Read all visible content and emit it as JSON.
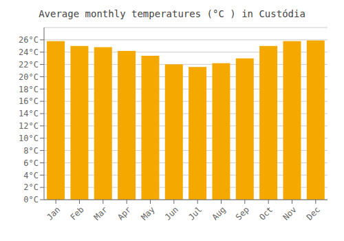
{
  "chart_data": {
    "type": "bar",
    "title": "Average monthly temperatures (°C ) in Custódia",
    "categories": [
      "Jan",
      "Feb",
      "Mar",
      "Apr",
      "May",
      "Jun",
      "Jul",
      "Aug",
      "Sep",
      "Oct",
      "Nov",
      "Dec"
    ],
    "values": [
      25.8,
      25.0,
      24.8,
      24.2,
      23.4,
      22.0,
      21.6,
      22.2,
      23.0,
      25.0,
      25.8,
      25.9
    ],
    "color": "#F5A800",
    "ylim": [
      0,
      28
    ],
    "yticks": [
      {
        "value": 0,
        "label": "0°C"
      },
      {
        "value": 2,
        "label": "2°C"
      },
      {
        "value": 4,
        "label": "4°C"
      },
      {
        "value": 6,
        "label": "6°C"
      },
      {
        "value": 8,
        "label": "8°C"
      },
      {
        "value": 10,
        "label": "10°C"
      },
      {
        "value": 12,
        "label": "12°C"
      },
      {
        "value": 14,
        "label": "14°C"
      },
      {
        "value": 16,
        "label": "16°C"
      },
      {
        "value": 18,
        "label": "18°C"
      },
      {
        "value": 20,
        "label": "20°C"
      },
      {
        "value": 22,
        "label": "22°C"
      },
      {
        "value": 24,
        "label": "24°C"
      },
      {
        "value": 26,
        "label": "26°C"
      }
    ],
    "grid": true
  }
}
